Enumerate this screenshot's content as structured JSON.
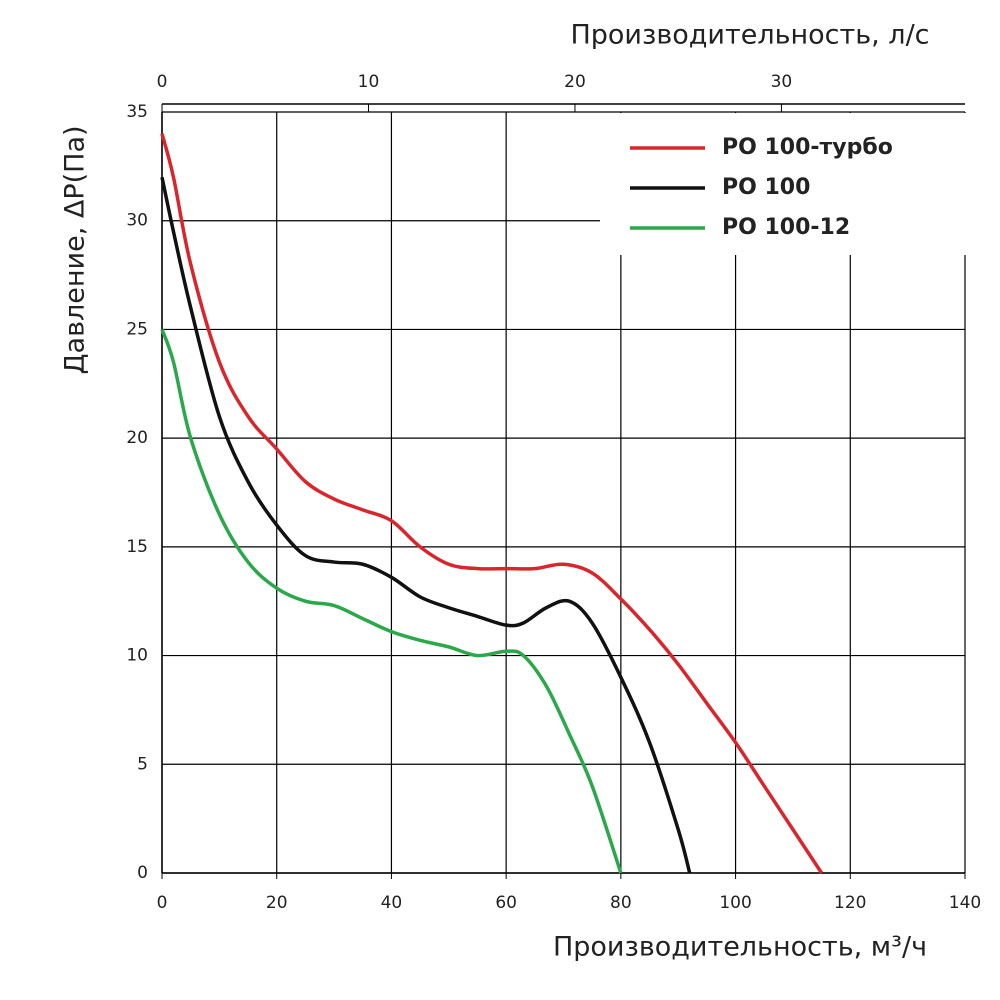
{
  "chart_data": {
    "type": "line",
    "xlabel": "Производительность, м³/ч",
    "x2label": "Производительность, л/с",
    "ylabel": "Давление, ΔP(Па)",
    "xlim": [
      0,
      140
    ],
    "xticks": [
      0,
      20,
      40,
      60,
      80,
      100,
      120,
      140
    ],
    "x2lim": [
      0,
      38.89
    ],
    "x2ticks": [
      0,
      10,
      20,
      30
    ],
    "ylim": [
      0,
      35
    ],
    "yticks": [
      0,
      5,
      10,
      15,
      20,
      25,
      30,
      35
    ],
    "grid": true,
    "legend": "upper right",
    "series": [
      {
        "name": "РО 100-турбо",
        "color": "#d9262c",
        "x": [
          0,
          2,
          5,
          10,
          15,
          20,
          25,
          30,
          35,
          40,
          45,
          50,
          55,
          60,
          65,
          70,
          75,
          80,
          85,
          90,
          95,
          100,
          105,
          110,
          115
        ],
        "values": [
          34,
          32,
          28,
          23.5,
          21,
          19.5,
          18,
          17.2,
          16.7,
          16.2,
          15,
          14.2,
          14,
          14,
          14,
          14.2,
          13.8,
          12.6,
          11.2,
          9.6,
          7.8,
          6,
          4,
          2,
          0
        ]
      },
      {
        "name": "РО 100",
        "color": "#111111",
        "x": [
          0,
          2,
          5,
          10,
          15,
          20,
          25,
          30,
          35,
          40,
          45,
          50,
          55,
          60,
          63,
          67,
          71,
          75,
          80,
          85,
          90,
          92
        ],
        "values": [
          32,
          29.5,
          26,
          21,
          18,
          16,
          14.6,
          14.3,
          14.2,
          13.6,
          12.7,
          12.2,
          11.8,
          11.4,
          11.5,
          12.2,
          12.5,
          11.5,
          9,
          6,
          2,
          0
        ]
      },
      {
        "name": "РО 100-12",
        "color": "#2aa84a",
        "x": [
          0,
          2,
          5,
          10,
          15,
          20,
          25,
          30,
          35,
          40,
          45,
          50,
          55,
          60,
          63,
          67,
          71,
          75,
          80
        ],
        "values": [
          25,
          23.5,
          20,
          16.5,
          14.3,
          13.1,
          12.5,
          12.3,
          11.7,
          11.1,
          10.7,
          10.4,
          10,
          10.2,
          10,
          8.6,
          6.4,
          4,
          0
        ]
      }
    ]
  }
}
